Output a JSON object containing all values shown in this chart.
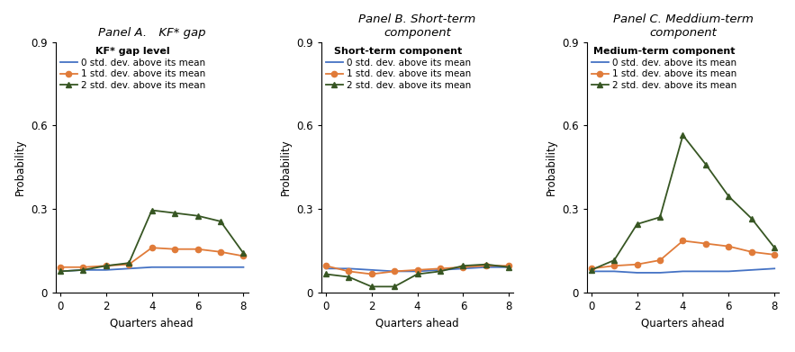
{
  "x": [
    0,
    1,
    2,
    3,
    4,
    5,
    6,
    7,
    8
  ],
  "panel_titles": [
    "Panel A. KF* gap",
    "Panel B. Short-term\ncomponent",
    "Panel C. Meddium-term\ncomponent"
  ],
  "legend_titles": [
    "KF* gap level",
    "Short-term component",
    "Medium-term component"
  ],
  "panels": {
    "A": {
      "line0": [
        0.075,
        0.08,
        0.08,
        0.085,
        0.09,
        0.09,
        0.09,
        0.09,
        0.09
      ],
      "line1": [
        0.09,
        0.09,
        0.095,
        0.1,
        0.16,
        0.155,
        0.155,
        0.145,
        0.13
      ],
      "line2": [
        0.075,
        0.08,
        0.095,
        0.105,
        0.295,
        0.285,
        0.275,
        0.255,
        0.14
      ]
    },
    "B": {
      "line0": [
        0.085,
        0.085,
        0.08,
        0.075,
        0.075,
        0.08,
        0.085,
        0.09,
        0.09
      ],
      "line1": [
        0.095,
        0.075,
        0.065,
        0.075,
        0.08,
        0.085,
        0.09,
        0.095,
        0.095
      ],
      "line2": [
        0.065,
        0.055,
        0.02,
        0.02,
        0.065,
        0.075,
        0.095,
        0.1,
        0.09
      ]
    },
    "C": {
      "line0": [
        0.075,
        0.075,
        0.07,
        0.07,
        0.075,
        0.075,
        0.075,
        0.08,
        0.085
      ],
      "line1": [
        0.085,
        0.095,
        0.1,
        0.115,
        0.185,
        0.175,
        0.165,
        0.145,
        0.135
      ],
      "line2": [
        0.08,
        0.115,
        0.245,
        0.27,
        0.565,
        0.46,
        0.345,
        0.265,
        0.16
      ]
    }
  },
  "colors": {
    "line0": "#4472C4",
    "line1": "#E07B39",
    "line2": "#375623"
  },
  "ylim": [
    0,
    0.9
  ],
  "yticks": [
    0,
    0.3,
    0.6,
    0.9
  ],
  "xlim": [
    -0.2,
    8.2
  ],
  "xticks": [
    0,
    2,
    4,
    6,
    8
  ],
  "ylabel": "Probability",
  "xlabel": "Quarters ahead",
  "legend_labels": [
    "0 std. dev. above its mean",
    "1 std. dev. above its mean",
    "2 std. dev. above its mean"
  ],
  "figsize": [
    8.83,
    3.91
  ],
  "dpi": 100
}
